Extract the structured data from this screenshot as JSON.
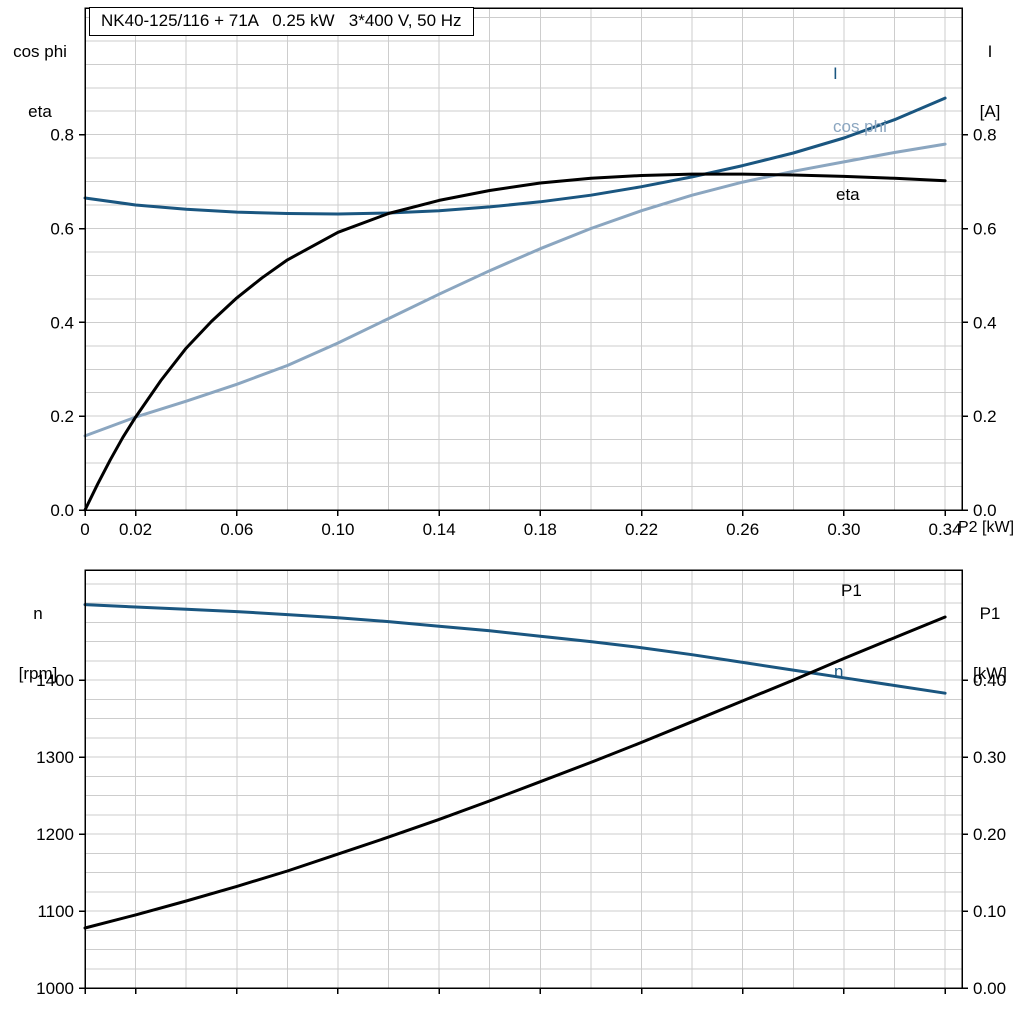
{
  "title_box": {
    "text": "NK40-125/116 + 71A   0.25 kW   3*400 V, 50 Hz"
  },
  "colors": {
    "dark_blue": "#1a5680",
    "light_blue": "#8ba6c0",
    "black": "#000000",
    "grid": "#cdcdcd",
    "axis": "#000000",
    "background": "#ffffff"
  },
  "chart_data": [
    {
      "name": "motor-electrical-chart",
      "type": "line",
      "title": "NK40-125/116 + 71A   0.25 kW   3*400 V, 50 Hz",
      "xlabel": "P2 [kW]",
      "left_axis_title": [
        "cos phi",
        "eta"
      ],
      "right_axis_title": [
        "I",
        "[A]"
      ],
      "xlim": [
        0,
        0.3467
      ],
      "ylim_left": [
        0,
        1.07
      ],
      "ylim_right": [
        0,
        1.07
      ],
      "x_grid_step": 0.02,
      "y_grid_step": 0.05,
      "grid": true,
      "x_ticks": {
        "values": [
          0,
          0.02,
          0.06,
          0.1,
          0.14,
          0.18,
          0.22,
          0.26,
          0.3,
          0.34
        ],
        "labels": [
          "0",
          "0.02",
          "0.06",
          "0.10",
          "0.14",
          "0.18",
          "0.22",
          "0.26",
          "0.30",
          "0.34"
        ]
      },
      "y_ticks_left": {
        "values": [
          0,
          0.2,
          0.4,
          0.6,
          0.8
        ],
        "labels": [
          "0.0",
          "0.2",
          "0.4",
          "0.6",
          "0.8"
        ]
      },
      "y_ticks_right": {
        "values": [
          0,
          0.2,
          0.4,
          0.6,
          0.8
        ],
        "labels": [
          "0.0",
          "0.2",
          "0.4",
          "0.6",
          "0.8"
        ]
      },
      "series": [
        {
          "name": "I",
          "color_key": "dark_blue",
          "axis": "right",
          "x": [
            0,
            0.02,
            0.04,
            0.06,
            0.08,
            0.1,
            0.12,
            0.14,
            0.16,
            0.18,
            0.2,
            0.22,
            0.24,
            0.26,
            0.28,
            0.3,
            0.32,
            0.34
          ],
          "y": [
            0.665,
            0.65,
            0.641,
            0.635,
            0.632,
            0.631,
            0.633,
            0.638,
            0.646,
            0.657,
            0.671,
            0.689,
            0.71,
            0.734,
            0.761,
            0.793,
            0.832,
            0.878
          ]
        },
        {
          "name": "cos phi",
          "color_key": "light_blue",
          "axis": "left",
          "x": [
            0,
            0.02,
            0.04,
            0.06,
            0.08,
            0.1,
            0.12,
            0.14,
            0.16,
            0.18,
            0.2,
            0.22,
            0.24,
            0.26,
            0.28,
            0.3,
            0.32,
            0.34
          ],
          "y": [
            0.158,
            0.198,
            0.232,
            0.268,
            0.308,
            0.356,
            0.408,
            0.46,
            0.51,
            0.557,
            0.6,
            0.638,
            0.671,
            0.699,
            0.722,
            0.742,
            0.762,
            0.78
          ]
        },
        {
          "name": "eta",
          "color_key": "black",
          "axis": "left",
          "x": [
            0,
            0.005,
            0.01,
            0.015,
            0.02,
            0.03,
            0.04,
            0.05,
            0.06,
            0.07,
            0.08,
            0.1,
            0.12,
            0.14,
            0.16,
            0.18,
            0.2,
            0.22,
            0.24,
            0.26,
            0.28,
            0.3,
            0.32,
            0.34
          ],
          "y": [
            0,
            0.055,
            0.107,
            0.155,
            0.198,
            0.276,
            0.345,
            0.402,
            0.452,
            0.495,
            0.533,
            0.592,
            0.632,
            0.66,
            0.681,
            0.697,
            0.707,
            0.713,
            0.716,
            0.716,
            0.714,
            0.711,
            0.707,
            0.702
          ]
        }
      ]
    },
    {
      "name": "motor-speed-power-chart",
      "type": "line",
      "left_axis_title": [
        "n",
        "[rpm]"
      ],
      "right_axis_title": [
        "P1",
        "[kW]"
      ],
      "xlim": [
        0,
        0.3467
      ],
      "ylim_left": [
        1000,
        1543
      ],
      "ylim_right": [
        0,
        0.543
      ],
      "x_grid_step": 0.02,
      "y_grid_step": 25,
      "grid": true,
      "x_ticks": {
        "values": [
          0,
          0.02,
          0.06,
          0.1,
          0.14,
          0.18,
          0.22,
          0.26,
          0.3,
          0.34
        ],
        "labels": []
      },
      "y_ticks_left": {
        "values": [
          1000,
          1100,
          1200,
          1300,
          1400
        ],
        "labels": [
          "1000",
          "1100",
          "1200",
          "1300",
          "1400"
        ]
      },
      "y_ticks_right": {
        "values": [
          0,
          0.1,
          0.2,
          0.3,
          0.4
        ],
        "labels": [
          "0.00",
          "0.10",
          "0.20",
          "0.30",
          "0.40"
        ]
      },
      "series": [
        {
          "name": "n",
          "color_key": "dark_blue",
          "axis": "left",
          "x": [
            0,
            0.02,
            0.04,
            0.06,
            0.08,
            0.1,
            0.12,
            0.14,
            0.16,
            0.18,
            0.2,
            0.22,
            0.24,
            0.26,
            0.28,
            0.3,
            0.32,
            0.34
          ],
          "y": [
            1498,
            1495,
            1492,
            1489,
            1485,
            1481,
            1476,
            1470,
            1464,
            1457,
            1450,
            1442,
            1433,
            1423,
            1413,
            1403,
            1393,
            1383
          ]
        },
        {
          "name": "P1",
          "color_key": "black",
          "axis": "right",
          "x": [
            0,
            0.02,
            0.04,
            0.06,
            0.08,
            0.1,
            0.12,
            0.14,
            0.16,
            0.18,
            0.2,
            0.22,
            0.24,
            0.26,
            0.28,
            0.3,
            0.32,
            0.34
          ],
          "y": [
            0.078,
            0.095,
            0.113,
            0.132,
            0.152,
            0.174,
            0.196,
            0.219,
            0.243,
            0.268,
            0.293,
            0.319,
            0.346,
            0.373,
            0.4,
            0.428,
            0.455,
            0.482
          ]
        }
      ]
    }
  ]
}
